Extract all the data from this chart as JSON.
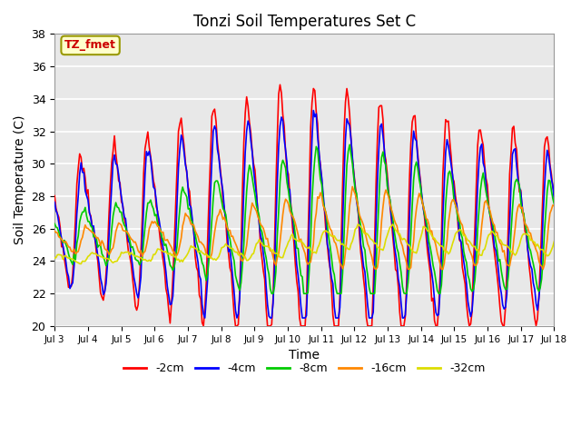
{
  "title": "Tonzi Soil Temperatures Set C",
  "xlabel": "Time",
  "ylabel": "Soil Temperature (C)",
  "ylim": [
    20,
    38
  ],
  "xlim": [
    0,
    15
  ],
  "tick_labels": [
    "Jul 3",
    "Jul 4",
    "Jul 5",
    "Jul 6",
    "Jul 7",
    "Jul 8",
    "Jul 9",
    "Jul 10",
    "Jul 11",
    "Jul 12",
    "Jul 13",
    "Jul 14",
    "Jul 15",
    "Jul 16",
    "Jul 17",
    "Jul 18"
  ],
  "annotation": "TZ_fmet",
  "annotation_color": "#cc0000",
  "annotation_bg": "#ffffcc",
  "annotation_border": "#999900",
  "colors": {
    "-2cm": "#ff0000",
    "-4cm": "#0000ff",
    "-8cm": "#00cc00",
    "-16cm": "#ff8800",
    "-32cm": "#dddd00"
  },
  "linewidth": 1.2,
  "bg_color": "#e8e8e8",
  "grid_color": "#ffffff",
  "fig_bg": "#ffffff",
  "n_points": 360
}
